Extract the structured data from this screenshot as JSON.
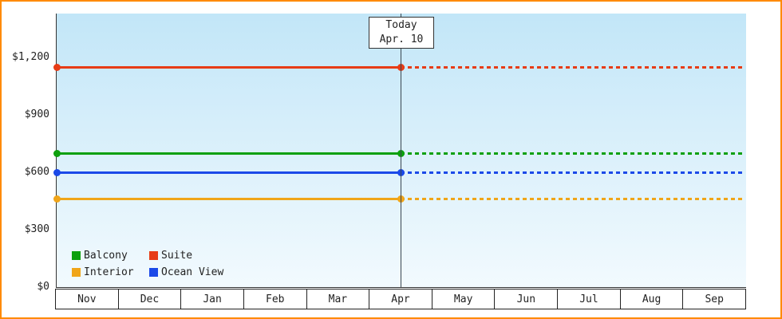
{
  "chart_data": {
    "type": "line",
    "title": "",
    "x_categories": [
      "Nov",
      "Dec",
      "Jan",
      "Feb",
      "Mar",
      "Apr",
      "May",
      "Jun",
      "Jul",
      "Aug",
      "Sep"
    ],
    "y_ticks": [
      "$0",
      "$300",
      "$600",
      "$900",
      "$1,200"
    ],
    "y_tick_values": [
      0,
      300,
      600,
      900,
      1200
    ],
    "ylim": [
      0,
      1430
    ],
    "grid": false,
    "legend_position": "bottom-left-inside",
    "today": {
      "line1": "Today",
      "line2": "Apr. 10",
      "month_index": 5.5
    },
    "series": [
      {
        "name": "Suite",
        "color": "#e73c16",
        "value": 1150,
        "solid_until": "today",
        "dashed_after": true
      },
      {
        "name": "Balcony",
        "color": "#0da00d",
        "value": 700,
        "solid_until": "today",
        "dashed_after": true
      },
      {
        "name": "Ocean View",
        "color": "#1b49e8",
        "value": 600,
        "solid_until": "today",
        "dashed_after": true
      },
      {
        "name": "Interior",
        "color": "#f0a519",
        "value": 460,
        "solid_until": "today",
        "dashed_after": true
      }
    ],
    "legend_rows": [
      [
        "Balcony",
        "Suite"
      ],
      [
        "Interior",
        "Ocean View"
      ]
    ]
  },
  "frame": {
    "border_color": "#ff8a00",
    "plot_bg_top": "#c2e6f8",
    "plot_bg_bottom": "#f2fafe"
  }
}
